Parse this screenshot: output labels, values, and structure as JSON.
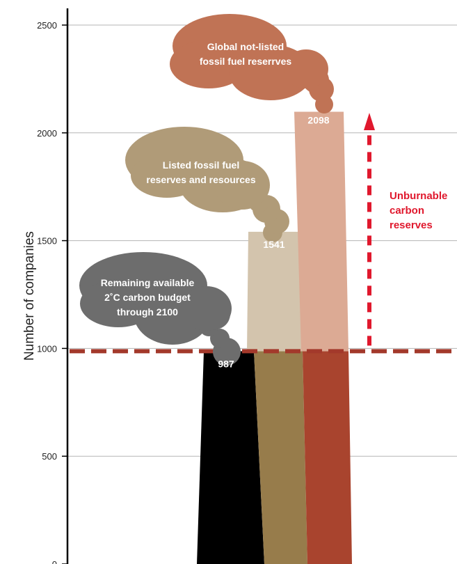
{
  "chart_data": {
    "type": "bar",
    "title": "",
    "ylabel": "Number of companies",
    "ylim": [
      0,
      2500
    ],
    "yticks": [
      0,
      500,
      1000,
      1500,
      2000,
      2500
    ],
    "ytick_labels": [
      "0",
      "500",
      "1000",
      "1500",
      "2000",
      "2500"
    ],
    "grid": true,
    "reference_line": 987,
    "series": [
      {
        "value": 987,
        "value_label": "987",
        "label_lines": [
          "Remaining available",
          "2˚C carbon budget",
          "through 2100"
        ]
      },
      {
        "value": 1541,
        "value_label": "1541",
        "label_lines": [
          "Listed fossil fuel",
          "reserves and resources"
        ]
      },
      {
        "value": 2098,
        "value_label": "2098",
        "label_lines": [
          "Global not-listed",
          "fossil fuel reserrves"
        ]
      }
    ],
    "annotation_lines": [
      "Unburnable",
      "carbon",
      "reserves"
    ]
  },
  "colors": {
    "black_stack": "#000000",
    "budget_smoke": "#6d6d6d",
    "listed_stack": "#977c4b",
    "listed_smoke": "#b09b78",
    "listed_light": "#d3c4ad",
    "global_stack": "#a9442e",
    "global_smoke": "#c07355",
    "global_light": "#dcaa94",
    "ref_line": "#a3392b",
    "annotation": "#e0182d",
    "grid": "#b5b5b5",
    "axis": "#000000"
  }
}
